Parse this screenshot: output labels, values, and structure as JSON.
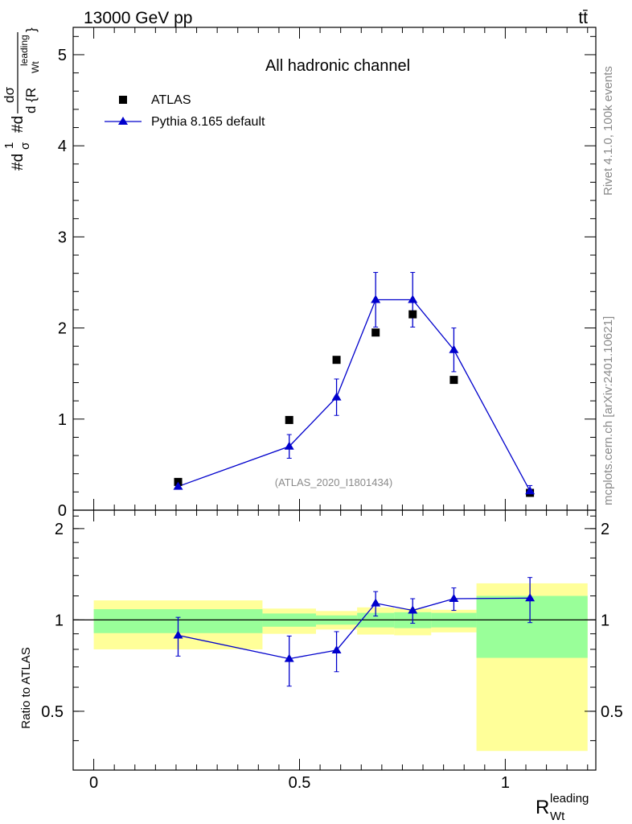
{
  "header": {
    "energy_label": "13000 GeV pp",
    "process_label": "tt̄"
  },
  "side_labels": {
    "rivet": "Rivet 4.1.0,  100k events",
    "source": "mcplots.cern.ch [arXiv:2401.10621]"
  },
  "chart_data": [
    {
      "type": "scatter",
      "title": "All hadronic channel",
      "watermark": "(ATLAS_2020_I1801434)",
      "ylabel_parts": [
        "#d",
        "1",
        "σ",
        "#d",
        "dσ",
        "d {R",
        "leading",
        "Wt",
        "}"
      ],
      "xlim": [
        -0.05,
        1.22
      ],
      "ylim": [
        0,
        5.3
      ],
      "yticks": [
        0,
        1,
        2,
        3,
        4,
        5
      ],
      "x": [
        0.205,
        0.475,
        0.59,
        0.685,
        0.775,
        0.875,
        1.06
      ],
      "series": [
        {
          "name": "ATLAS",
          "marker": "square",
          "color": "#000000",
          "values": [
            0.31,
            0.99,
            1.65,
            1.95,
            2.15,
            1.43,
            0.19
          ]
        },
        {
          "name": "Pythia 8.165 default",
          "marker": "triangle",
          "color": "#0000cc",
          "values": [
            0.26,
            0.7,
            1.24,
            2.31,
            2.31,
            1.76,
            0.21
          ],
          "err": [
            0.02,
            0.13,
            0.2,
            0.3,
            0.3,
            0.24,
            0.06
          ]
        }
      ],
      "legend_position": "top-left"
    },
    {
      "type": "scatter",
      "ylabel": "Ratio to ATLAS",
      "xlabel_main": "R",
      "xlabel_sub": "Wt",
      "xlabel_sup": "leading",
      "xlim": [
        -0.05,
        1.22
      ],
      "ylim": [
        0.32,
        2.3
      ],
      "yticks": [
        0.5,
        1,
        2
      ],
      "xticks": [
        0,
        0.5,
        1
      ],
      "xtick_labels": [
        "0",
        "0.5",
        "1"
      ],
      "reference_line": 1,
      "uncertainty_bands": [
        {
          "x0": 0.0,
          "x1": 0.41,
          "green": [
            0.905,
            1.085
          ],
          "yellow": [
            0.8,
            1.16
          ]
        },
        {
          "x0": 0.41,
          "x1": 0.54,
          "green": [
            0.95,
            1.05
          ],
          "yellow": [
            0.9,
            1.09
          ]
        },
        {
          "x0": 0.54,
          "x1": 0.64,
          "green": [
            0.965,
            1.035
          ],
          "yellow": [
            0.93,
            1.07
          ]
        },
        {
          "x0": 0.64,
          "x1": 0.73,
          "green": [
            0.945,
            1.055
          ],
          "yellow": [
            0.895,
            1.1
          ]
        },
        {
          "x0": 0.73,
          "x1": 0.82,
          "green": [
            0.94,
            1.06
          ],
          "yellow": [
            0.89,
            1.09
          ]
        },
        {
          "x0": 0.82,
          "x1": 0.93,
          "green": [
            0.945,
            1.055
          ],
          "yellow": [
            0.91,
            1.08
          ]
        },
        {
          "x0": 0.93,
          "x1": 1.2,
          "green": [
            0.75,
            1.2
          ],
          "yellow": [
            0.37,
            1.32
          ]
        }
      ],
      "series": [
        {
          "name": "Pythia 8.165 default / ATLAS",
          "color": "#0000cc",
          "x": [
            0.205,
            0.475,
            0.59,
            0.685,
            0.775,
            0.875,
            1.06
          ],
          "values": [
            0.89,
            0.745,
            0.795,
            1.135,
            1.075,
            1.175,
            1.18
          ],
          "err": [
            0.13,
            0.14,
            0.12,
            0.105,
            0.1,
            0.1,
            0.2
          ]
        }
      ]
    }
  ]
}
